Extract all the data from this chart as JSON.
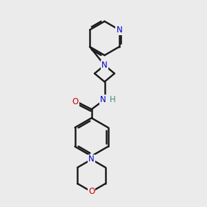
{
  "background_color": "#ebebeb",
  "bond_color": "#1a1a1a",
  "N_color": "#0000cc",
  "O_color": "#cc0000",
  "H_color": "#3a8a8a",
  "figsize": [
    3.0,
    3.0
  ],
  "dpi": 100,
  "xlim": [
    0,
    10
  ],
  "ylim": [
    0,
    10
  ]
}
